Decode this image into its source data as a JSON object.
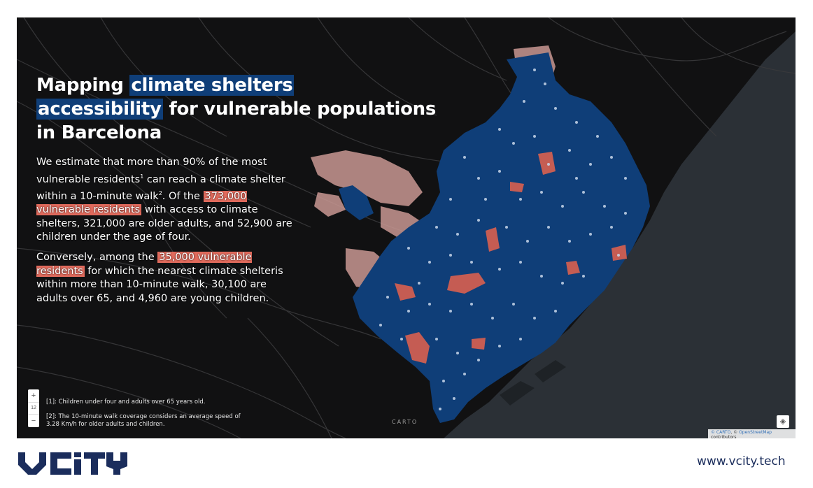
{
  "title": {
    "line1_plain": "Mapping ",
    "line1_highlight": "climate shelters",
    "line2_highlight": "accessibility",
    "line2_plain": " for vulnerable populations",
    "line3_plain": "in Barcelona"
  },
  "paragraph1": {
    "part1": "We estimate that more than 90% of the most vulnerable residents",
    "sup1": "1",
    "part2": " can reach a climate shelter within a 10-minute walk",
    "sup2": "2",
    "part3": ". Of the ",
    "highlight": "373,000 vulnerable residents",
    "part4": " with access to climate shelters, 321,000 are older adults, and 52,900 are children under the age of four."
  },
  "paragraph2": {
    "part1": "Conversely, among the ",
    "highlight": "35,000 vulnerable residents",
    "part2": " for which the nearest climate shelteris within more than 10-minute walk, 30,100 are adults over 65, and 4,960 are young children."
  },
  "footnotes": {
    "fn1": "[1]: Children under four and adults over 65 years old.",
    "fn2": "[2]: The 10-minute walk coverage considers an average speed of 3.28 Km/h for older adults and children."
  },
  "map_controls": {
    "zoom_in": "+",
    "zoom_level": "12",
    "zoom_out": "−",
    "carto_label": "CARTO",
    "attribution_carto": "© CARTO",
    "attribution_sep": ", © ",
    "attribution_osm": "OpenStreetMap",
    "attribution_suffix": " contributors"
  },
  "colors": {
    "covered": "#0f3e78",
    "not_covered_dense": "#d9604f",
    "not_covered_sparse": "#c99893",
    "shelter_dot": "#c9d7ea",
    "sea": "#2b3036",
    "land": "#121213"
  },
  "footer": {
    "logo_text": "VCiTY",
    "url": "www.vcity.tech"
  }
}
